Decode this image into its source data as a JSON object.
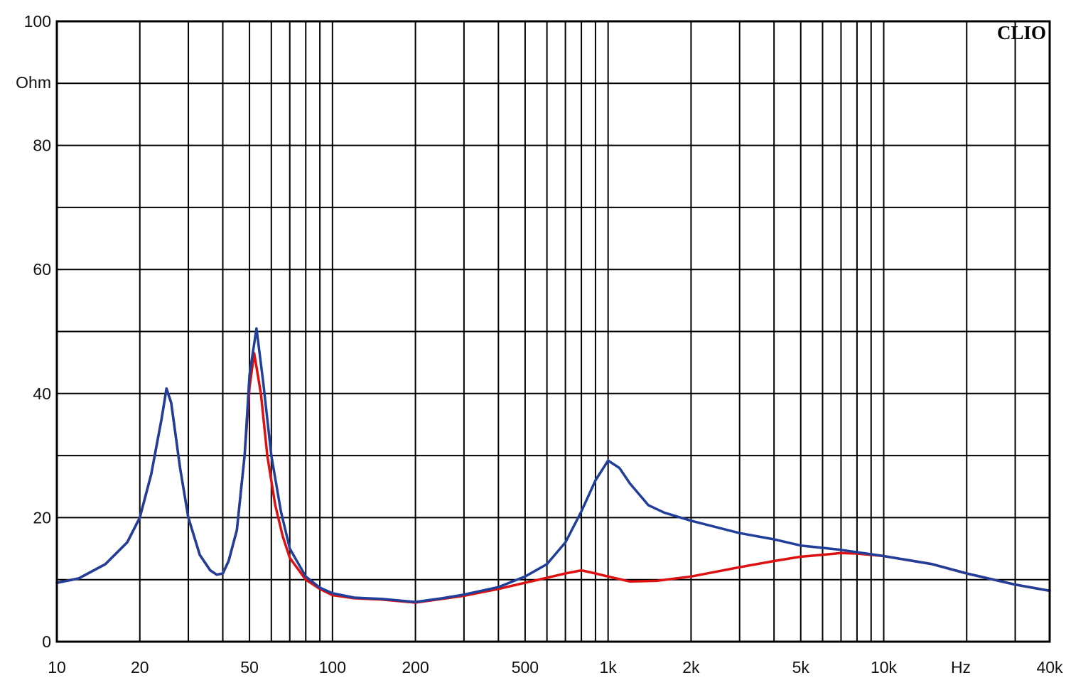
{
  "chart_data": {
    "type": "line",
    "title": "",
    "xlabel": "Hz",
    "ylabel": "Ohm",
    "brand": "CLIO",
    "x_scale": "log",
    "xlim": [
      10,
      40000
    ],
    "ylim": [
      0,
      100
    ],
    "grid": true,
    "x_ticks": [
      {
        "value": 10,
        "label": "10"
      },
      {
        "value": 20,
        "label": "20"
      },
      {
        "value": 50,
        "label": "50"
      },
      {
        "value": 100,
        "label": "100"
      },
      {
        "value": 200,
        "label": "200"
      },
      {
        "value": 500,
        "label": "500"
      },
      {
        "value": 1000,
        "label": "1k"
      },
      {
        "value": 2000,
        "label": "2k"
      },
      {
        "value": 5000,
        "label": "5k"
      },
      {
        "value": 10000,
        "label": "10k"
      },
      {
        "value": 40000,
        "label": "40k"
      }
    ],
    "y_ticks": [
      {
        "value": 0,
        "label": "0"
      },
      {
        "value": 20,
        "label": "20"
      },
      {
        "value": 40,
        "label": "40"
      },
      {
        "value": 60,
        "label": "60"
      },
      {
        "value": 80,
        "label": "80"
      },
      {
        "value": 100,
        "label": "100"
      }
    ],
    "series": [
      {
        "color": "#dd1111",
        "points": [
          [
            10,
            9.5
          ],
          [
            12,
            10.2
          ],
          [
            15,
            12.5
          ],
          [
            18,
            16
          ],
          [
            20,
            20
          ],
          [
            22,
            27
          ],
          [
            24,
            36
          ],
          [
            25,
            40.8
          ],
          [
            26,
            38.5
          ],
          [
            28,
            28
          ],
          [
            30,
            20
          ],
          [
            33,
            14
          ],
          [
            36,
            11.5
          ],
          [
            38,
            10.8
          ],
          [
            40,
            11
          ],
          [
            42,
            13
          ],
          [
            45,
            18
          ],
          [
            48,
            30
          ],
          [
            50,
            41
          ],
          [
            52,
            46.5
          ],
          [
            55,
            40
          ],
          [
            58,
            30
          ],
          [
            62,
            22
          ],
          [
            66,
            17
          ],
          [
            70,
            13.5
          ],
          [
            80,
            10
          ],
          [
            90,
            8.5
          ],
          [
            100,
            7.5
          ],
          [
            120,
            7
          ],
          [
            150,
            6.8
          ],
          [
            200,
            6.3
          ],
          [
            250,
            6.9
          ],
          [
            300,
            7.4
          ],
          [
            400,
            8.5
          ],
          [
            500,
            9.5
          ],
          [
            600,
            10.3
          ],
          [
            700,
            11
          ],
          [
            800,
            11.5
          ],
          [
            900,
            11
          ],
          [
            1000,
            10.5
          ],
          [
            1200,
            9.7
          ],
          [
            1500,
            9.8
          ],
          [
            2000,
            10.5
          ],
          [
            3000,
            12
          ],
          [
            4000,
            13
          ],
          [
            5000,
            13.7
          ],
          [
            6000,
            14
          ],
          [
            7000,
            14.3
          ],
          [
            8000,
            14.2
          ],
          [
            10000,
            13.8
          ],
          [
            15000,
            12.5
          ],
          [
            20000,
            11
          ],
          [
            30000,
            9.2
          ],
          [
            40000,
            8.2
          ]
        ]
      },
      {
        "color": "#1f3f9a",
        "points": [
          [
            10,
            9.5
          ],
          [
            12,
            10.2
          ],
          [
            15,
            12.5
          ],
          [
            18,
            16
          ],
          [
            20,
            20
          ],
          [
            22,
            27
          ],
          [
            24,
            36
          ],
          [
            25,
            40.8
          ],
          [
            26,
            38.5
          ],
          [
            28,
            28
          ],
          [
            30,
            20
          ],
          [
            33,
            14
          ],
          [
            36,
            11.5
          ],
          [
            38,
            10.8
          ],
          [
            40,
            11
          ],
          [
            42,
            13
          ],
          [
            45,
            18
          ],
          [
            48,
            30
          ],
          [
            50,
            43
          ],
          [
            53,
            50.5
          ],
          [
            56,
            42
          ],
          [
            60,
            30
          ],
          [
            65,
            21
          ],
          [
            70,
            15
          ],
          [
            80,
            10.5
          ],
          [
            90,
            8.7
          ],
          [
            100,
            7.8
          ],
          [
            120,
            7.1
          ],
          [
            150,
            6.9
          ],
          [
            200,
            6.4
          ],
          [
            250,
            7
          ],
          [
            300,
            7.6
          ],
          [
            400,
            8.8
          ],
          [
            500,
            10.5
          ],
          [
            600,
            12.5
          ],
          [
            700,
            16
          ],
          [
            800,
            21
          ],
          [
            900,
            26
          ],
          [
            1000,
            29.2
          ],
          [
            1100,
            28
          ],
          [
            1200,
            25.5
          ],
          [
            1400,
            22
          ],
          [
            1600,
            20.8
          ],
          [
            2000,
            19.5
          ],
          [
            3000,
            17.5
          ],
          [
            4000,
            16.5
          ],
          [
            5000,
            15.5
          ],
          [
            7000,
            14.8
          ],
          [
            10000,
            13.8
          ],
          [
            15000,
            12.5
          ],
          [
            20000,
            11
          ],
          [
            30000,
            9.2
          ],
          [
            40000,
            8.2
          ]
        ]
      }
    ]
  }
}
